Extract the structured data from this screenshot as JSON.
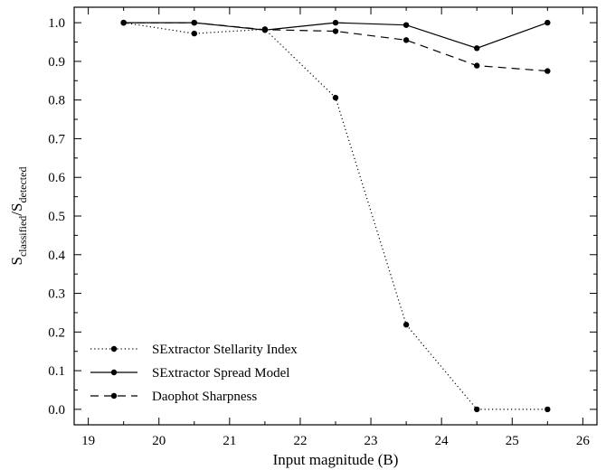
{
  "chart_data": {
    "type": "line",
    "title": "",
    "xlabel": "Input magnitude (B)",
    "ylabel": {
      "main_a": "S",
      "sub_a": "classified",
      "slash": "/",
      "main_b": "S",
      "sub_b": "detected"
    },
    "xlim": [
      18.8,
      26.2
    ],
    "ylim": [
      -0.04,
      1.04
    ],
    "xticks": [
      "19",
      "20",
      "21",
      "22",
      "23",
      "24",
      "25",
      "26"
    ],
    "yticks": [
      "0.0",
      "0.1",
      "0.2",
      "0.3",
      "0.4",
      "0.5",
      "0.6",
      "0.7",
      "0.8",
      "0.9",
      "1.0"
    ],
    "x": [
      19.5,
      20.5,
      21.5,
      22.5,
      23.5,
      24.5,
      25.5
    ],
    "series": [
      {
        "name": "SExtractor Stellarity Index",
        "style": "dotted",
        "values": [
          1.0,
          0.972,
          0.983,
          0.806,
          0.219,
          0.0,
          0.0
        ]
      },
      {
        "name": "SExtractor Spread Model",
        "style": "solid",
        "values": [
          1.0,
          1.0,
          0.981,
          1.0,
          0.994,
          0.934,
          1.0
        ]
      },
      {
        "name": "Daophot Sharpness",
        "style": "dashed",
        "values": [
          1.0,
          1.0,
          0.982,
          0.978,
          0.955,
          0.889,
          0.875
        ]
      }
    ],
    "legend_position": "lower-left",
    "grid": false,
    "color": "#000000"
  }
}
